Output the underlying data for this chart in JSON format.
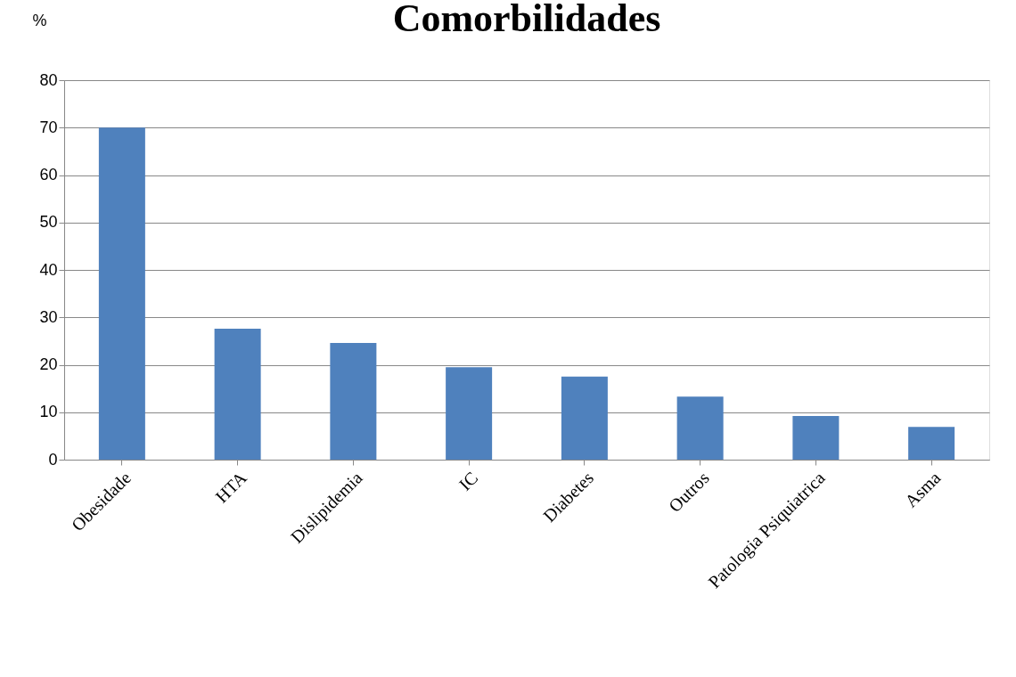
{
  "chart_data": {
    "type": "bar",
    "title": "Comorbilidades",
    "ylabel": "%",
    "categories": [
      "Obesidade",
      "HTA",
      "Dislipidemia",
      "IC",
      "Diabetes",
      "Outros",
      "Patologia Psiquiatrica",
      "Asma"
    ],
    "values": [
      70,
      27.6,
      24.6,
      19.5,
      17.5,
      13.3,
      9.2,
      6.9
    ],
    "color": "#4f81bd",
    "ylim": [
      0,
      80
    ],
    "yticks": [
      0,
      10,
      20,
      30,
      40,
      50,
      60,
      70,
      80
    ],
    "grid": "y"
  }
}
